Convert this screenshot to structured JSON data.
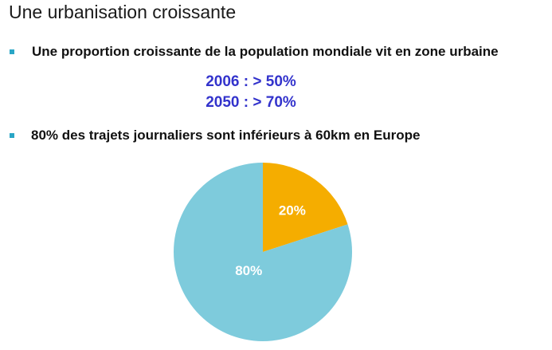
{
  "slide": {
    "title": "Une urbanisation croissante",
    "bullets": [
      "Une proportion croissante de la population mondiale vit en zone urbaine",
      "80% des trajets journaliers sont inférieurs à 60km en Europe"
    ],
    "stats": [
      "2006 : > 50%",
      "2050 : > 70%"
    ]
  },
  "colors": {
    "bullet": "#2aa6c6",
    "stat_text": "#3333cc",
    "slice_large": "#7ecbdc",
    "slice_small": "#f5ad00",
    "slice_label": "#ffffff"
  },
  "chart_data": {
    "type": "pie",
    "slices": [
      {
        "label": "20%",
        "value": 20,
        "color": "#f5ad00"
      },
      {
        "label": "80%",
        "value": 80,
        "color": "#7ecbdc"
      }
    ],
    "start": "12 o'clock",
    "direction": "clockwise"
  }
}
